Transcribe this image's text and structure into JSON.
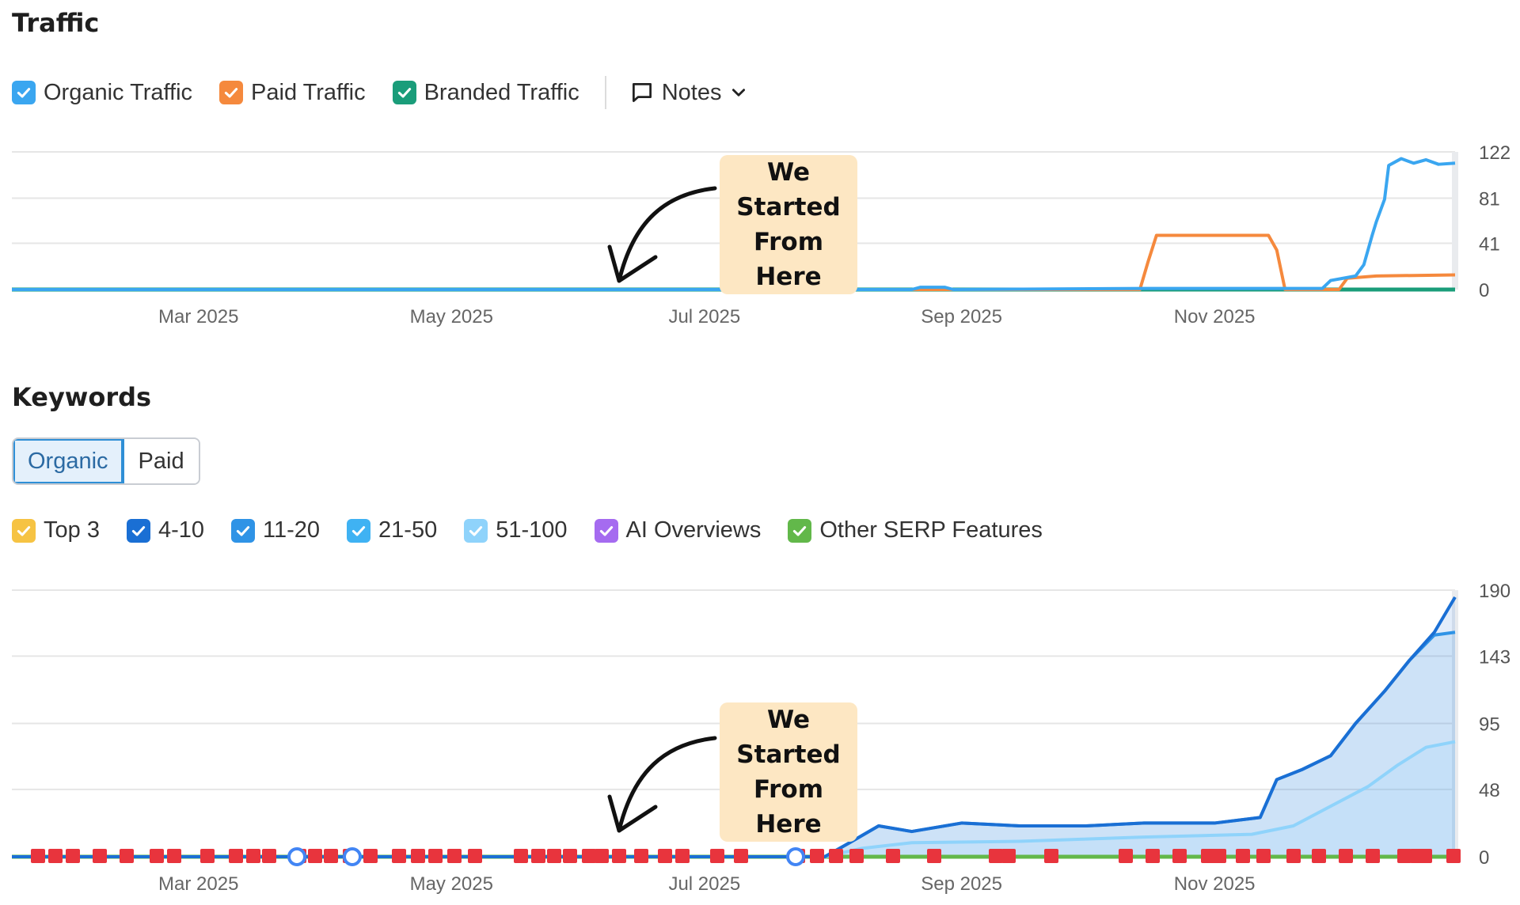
{
  "traffic": {
    "title": "Traffic",
    "legend": [
      {
        "label": "Organic Traffic",
        "color": "#3aa6f0",
        "icon": "checkbox-checked-icon"
      },
      {
        "label": "Paid Traffic",
        "color": "#f5893d",
        "icon": "checkbox-checked-icon"
      },
      {
        "label": "Branded Traffic",
        "color": "#1a9d7a",
        "icon": "checkbox-checked-icon"
      }
    ],
    "notes_label": "Notes",
    "annotation_line1": "We Started",
    "annotation_line2": "From Here"
  },
  "keywords": {
    "title": "Keywords",
    "tabs": [
      "Organic",
      "Paid"
    ],
    "active_tab": "Organic",
    "legend": [
      {
        "label": "Top 3",
        "color": "#f6c343"
      },
      {
        "label": "4-10",
        "color": "#1a6fd4"
      },
      {
        "label": "11-20",
        "color": "#2f93e6"
      },
      {
        "label": "21-50",
        "color": "#3fb2f3"
      },
      {
        "label": "51-100",
        "color": "#8fd3fb"
      },
      {
        "label": "AI Overviews",
        "color": "#a56bf0"
      },
      {
        "label": "Other SERP Features",
        "color": "#62b84a"
      }
    ],
    "annotation_line1": "We Started",
    "annotation_line2": "From Here"
  },
  "chart_data": [
    {
      "type": "line",
      "name": "traffic",
      "title": "Traffic",
      "x_ticks": [
        "Mar 2025",
        "May 2025",
        "Jul 2025",
        "Sep 2025",
        "Nov 2025"
      ],
      "y_ticks": [
        "122",
        "81",
        "41",
        "0"
      ],
      "ylim": [
        0,
        122
      ],
      "xlim": [
        "2025-01-15",
        "2025-12-29"
      ],
      "grid": true,
      "series": [
        {
          "name": "Organic Traffic",
          "color": "#3aa6f0",
          "points": [
            [
              "2025-01-15",
              0
            ],
            [
              "2025-08-20",
              0
            ],
            [
              "2025-08-22",
              2
            ],
            [
              "2025-08-28",
              2
            ],
            [
              "2025-08-30",
              0
            ],
            [
              "2025-10-15",
              1
            ],
            [
              "2025-11-27",
              1
            ],
            [
              "2025-11-29",
              8
            ],
            [
              "2025-12-02",
              10
            ],
            [
              "2025-12-05",
              12
            ],
            [
              "2025-12-07",
              22
            ],
            [
              "2025-12-09",
              48
            ],
            [
              "2025-12-10",
              60
            ],
            [
              "2025-12-12",
              80
            ],
            [
              "2025-12-13",
              110
            ],
            [
              "2025-12-16",
              116
            ],
            [
              "2025-12-19",
              112
            ],
            [
              "2025-12-22",
              115
            ],
            [
              "2025-12-25",
              111
            ],
            [
              "2025-12-29",
              112
            ]
          ]
        },
        {
          "name": "Paid Traffic",
          "color": "#f5893d",
          "points": [
            [
              "2025-01-15",
              0
            ],
            [
              "2025-10-14",
              0
            ],
            [
              "2025-10-16",
              25
            ],
            [
              "2025-10-18",
              48
            ],
            [
              "2025-11-14",
              48
            ],
            [
              "2025-11-16",
              35
            ],
            [
              "2025-11-18",
              0
            ],
            [
              "2025-12-01",
              0
            ],
            [
              "2025-12-03",
              10
            ],
            [
              "2025-12-10",
              12
            ],
            [
              "2025-12-29",
              13
            ]
          ]
        },
        {
          "name": "Branded Traffic",
          "color": "#1a9d7a",
          "points": [
            [
              "2025-01-15",
              0
            ],
            [
              "2025-12-29",
              0
            ]
          ]
        }
      ]
    },
    {
      "type": "area",
      "name": "keywords",
      "title": "Keywords",
      "x_ticks": [
        "Mar 2025",
        "May 2025",
        "Jul 2025",
        "Sep 2025",
        "Nov 2025"
      ],
      "y_ticks": [
        "190",
        "143",
        "95",
        "48",
        "0"
      ],
      "ylim": [
        0,
        190
      ],
      "xlim": [
        "2025-01-15",
        "2025-12-29"
      ],
      "grid": true,
      "series": [
        {
          "name": "4-10",
          "color": "#1a6fd4",
          "points": [
            [
              "2025-01-15",
              0
            ],
            [
              "2025-07-30",
              0
            ],
            [
              "2025-08-05",
              10
            ],
            [
              "2025-08-12",
              22
            ],
            [
              "2025-08-20",
              18
            ],
            [
              "2025-09-01",
              24
            ],
            [
              "2025-09-15",
              22
            ],
            [
              "2025-10-01",
              22
            ],
            [
              "2025-10-15",
              24
            ],
            [
              "2025-11-01",
              24
            ],
            [
              "2025-11-12",
              28
            ],
            [
              "2025-11-16",
              55
            ],
            [
              "2025-11-22",
              62
            ],
            [
              "2025-11-29",
              72
            ],
            [
              "2025-12-05",
              95
            ],
            [
              "2025-12-12",
              118
            ],
            [
              "2025-12-18",
              140
            ],
            [
              "2025-12-24",
              160
            ],
            [
              "2025-12-29",
              185
            ]
          ]
        },
        {
          "name": "11-20",
          "color": "#2f93e6",
          "points": [
            [
              "2025-01-15",
              0
            ],
            [
              "2025-07-30",
              0
            ],
            [
              "2025-08-05",
              10
            ],
            [
              "2025-08-12",
              22
            ],
            [
              "2025-08-20",
              18
            ],
            [
              "2025-09-01",
              24
            ],
            [
              "2025-09-15",
              22
            ],
            [
              "2025-10-01",
              22
            ],
            [
              "2025-10-15",
              24
            ],
            [
              "2025-11-01",
              24
            ],
            [
              "2025-11-12",
              28
            ],
            [
              "2025-11-16",
              55
            ],
            [
              "2025-11-22",
              62
            ],
            [
              "2025-11-29",
              72
            ],
            [
              "2025-12-05",
              95
            ],
            [
              "2025-12-12",
              118
            ],
            [
              "2025-12-18",
              140
            ],
            [
              "2025-12-24",
              158
            ],
            [
              "2025-12-29",
              160
            ]
          ]
        },
        {
          "name": "51-100",
          "color": "#8fd3fb",
          "points": [
            [
              "2025-01-15",
              0
            ],
            [
              "2025-07-30",
              0
            ],
            [
              "2025-08-08",
              6
            ],
            [
              "2025-08-20",
              10
            ],
            [
              "2025-09-15",
              11
            ],
            [
              "2025-10-15",
              14
            ],
            [
              "2025-11-10",
              16
            ],
            [
              "2025-11-20",
              22
            ],
            [
              "2025-11-29",
              36
            ],
            [
              "2025-12-08",
              50
            ],
            [
              "2025-12-15",
              65
            ],
            [
              "2025-12-22",
              78
            ],
            [
              "2025-12-29",
              82
            ]
          ]
        }
      ]
    }
  ]
}
